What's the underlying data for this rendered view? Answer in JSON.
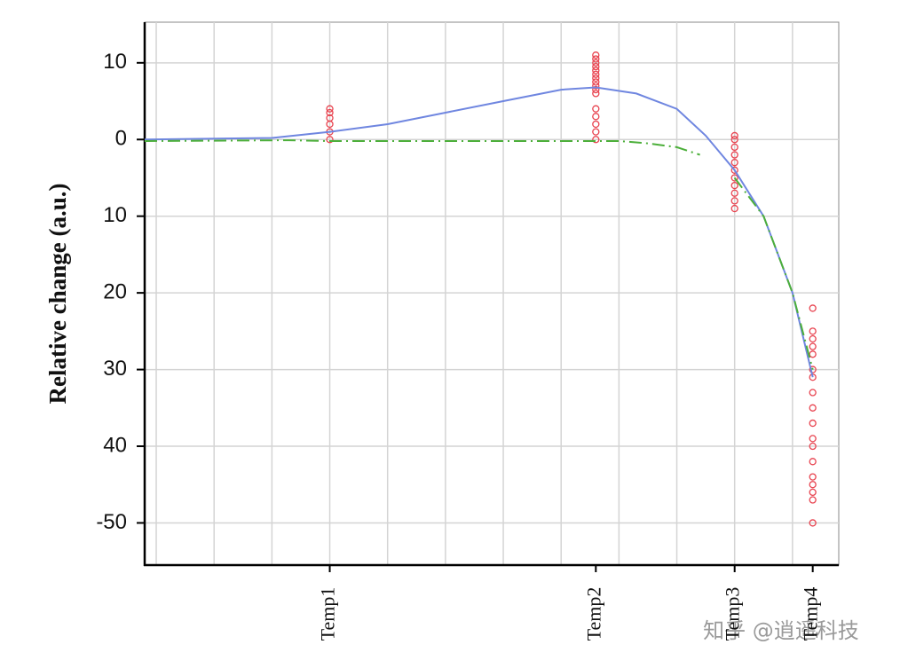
{
  "chart_data": {
    "type": "scatter",
    "ylabel": "Relative change (a.u.)",
    "watermark": "知乎 @逍遥科技",
    "xlim": [
      -0.2,
      11.8
    ],
    "ylim": [
      -55.5,
      15.3
    ],
    "xticks": [
      {
        "value": 3,
        "label": "Temp1"
      },
      {
        "value": 7.6,
        "label": "Temp2"
      },
      {
        "value": 10,
        "label": "Temp3"
      },
      {
        "value": 11.35,
        "label": "Temp4"
      }
    ],
    "x_grid": [
      0,
      1,
      2,
      3,
      4,
      5,
      6,
      7,
      8,
      9,
      10,
      11
    ],
    "yticks": [
      10,
      0,
      {
        "value": -10,
        "label": "10"
      },
      {
        "value": -20,
        "label": "20"
      },
      {
        "value": -30,
        "label": "30"
      },
      {
        "value": -40,
        "label": "40"
      },
      -50
    ],
    "grid": true,
    "series": [
      {
        "style": "markers",
        "color": "#e8434f",
        "x": [
          3,
          3,
          3,
          3,
          3,
          3,
          7.6,
          7.6,
          7.6,
          7.6,
          7.6,
          7.6,
          7.6,
          7.6,
          7.6,
          7.6,
          7.6,
          7.6,
          7.6,
          7.6,
          7.6,
          7.6,
          10,
          10,
          10,
          10,
          10,
          10,
          10,
          10,
          10,
          10,
          10,
          11.35,
          11.35,
          11.35,
          11.35,
          11.35,
          11.35,
          11.35,
          11.35,
          11.35,
          11.35,
          11.35,
          11.35,
          11.35,
          11.35,
          11.35,
          11.35,
          11.35,
          11.35
        ],
        "values": [
          0,
          1,
          2,
          2.8,
          3.5,
          4,
          0,
          1,
          2,
          3,
          4,
          6,
          6.5,
          7,
          7.5,
          8,
          8.5,
          9,
          9.5,
          10,
          10.5,
          11,
          0.5,
          0,
          -1,
          -2,
          -3,
          -4,
          -5,
          -6,
          -7,
          -8,
          -9,
          -22,
          -25,
          -26,
          -27,
          -28,
          -30,
          -31,
          -33,
          -35,
          -37,
          -39,
          -40,
          -42,
          -44,
          -45,
          -46,
          -47,
          -50
        ]
      },
      {
        "style": "solid",
        "color": "#6f86e0",
        "x": [
          -0.2,
          2,
          3,
          4,
          5,
          6,
          7,
          7.6,
          8.3,
          9,
          9.5,
          10,
          10.5,
          11,
          11.35
        ],
        "values": [
          0,
          0.2,
          1,
          2,
          3.5,
          5,
          6.5,
          6.8,
          6,
          4,
          0.5,
          -4,
          -10,
          -20,
          -31
        ]
      },
      {
        "style": "dash-dot",
        "color": "#4caf3a",
        "x": [
          -0.2,
          2.3,
          3,
          8,
          8.5,
          9,
          9.4,
          9.7,
          10,
          10.5,
          11,
          11.35
        ],
        "values": [
          -0.2,
          -0.1,
          -0.2,
          -0.2,
          -0.5,
          -1,
          -2,
          null,
          -5,
          -10,
          -20,
          -30
        ]
      }
    ]
  }
}
